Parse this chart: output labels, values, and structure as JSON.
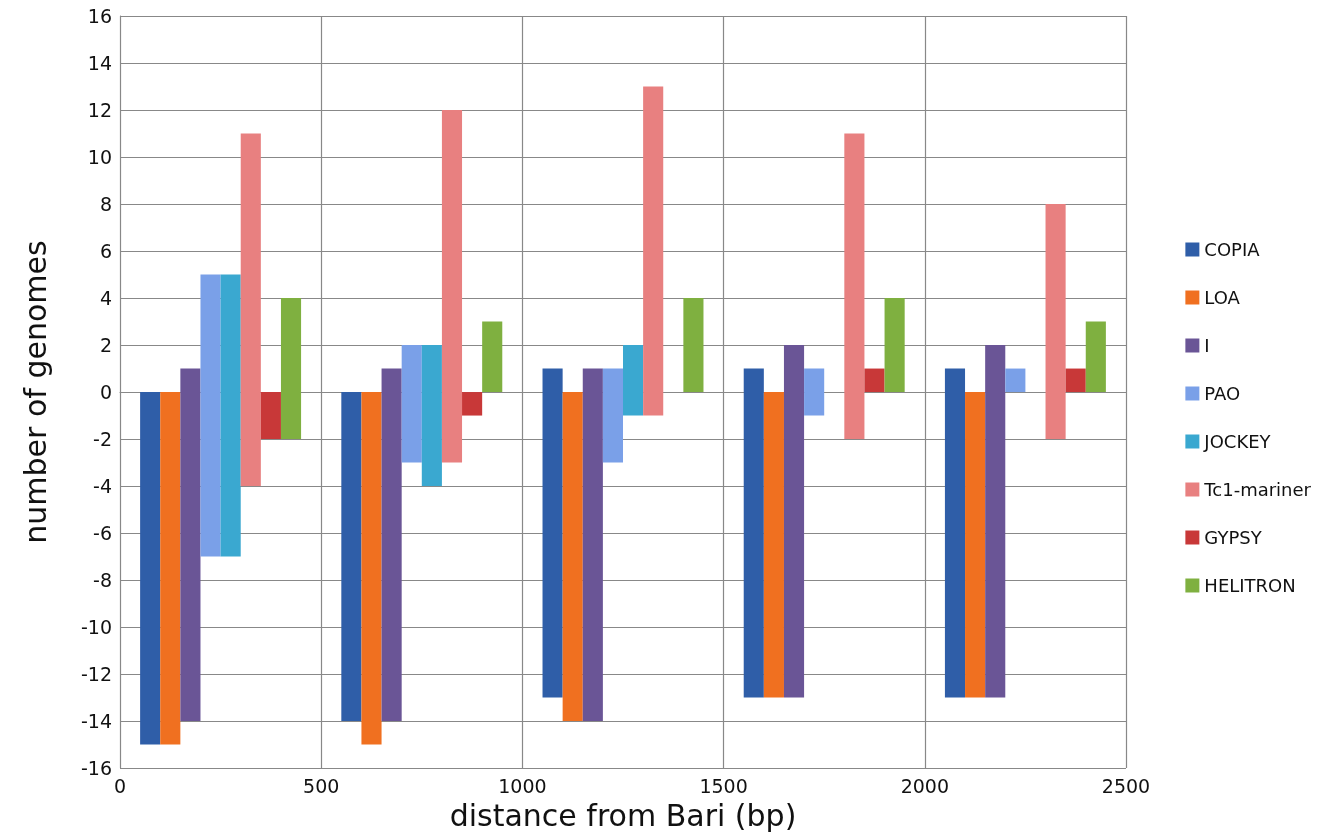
{
  "chart_data": {
    "type": "bar",
    "xlabel": "distance from Bari (bp)",
    "ylabel": "number of genomes",
    "x": [
      250,
      750,
      1250,
      1750,
      2250
    ],
    "xlim": [
      0,
      2500
    ],
    "xticks": [
      0,
      500,
      1000,
      1500,
      2000,
      2500
    ],
    "ylim": [
      -16,
      16
    ],
    "yticks": [
      -16,
      -14,
      -12,
      -10,
      -8,
      -6,
      -4,
      -2,
      0,
      2,
      4,
      6,
      8,
      10,
      12,
      14,
      16
    ],
    "grid": true,
    "legend": "right",
    "series": [
      {
        "name": "COPIA",
        "color": "#2f5ea8",
        "base": [
          -15,
          -14,
          -13,
          -13,
          -13
        ],
        "values": [
          15,
          14,
          14,
          14,
          14
        ]
      },
      {
        "name": "LOA",
        "color": "#f07020",
        "base": [
          -15,
          -15,
          -14,
          -13,
          -13
        ],
        "values": [
          15,
          15,
          14,
          13,
          13
        ]
      },
      {
        "name": "I",
        "color": "#6a5596",
        "base": [
          -14,
          -14,
          -14,
          -13,
          -13
        ],
        "values": [
          15,
          15,
          15,
          15,
          15
        ]
      },
      {
        "name": "PAO",
        "color": "#7aa0e8",
        "base": [
          -7,
          -3,
          -3,
          -1,
          0
        ],
        "values": [
          12,
          5,
          4,
          2,
          1
        ]
      },
      {
        "name": "JOCKEY",
        "color": "#3aa8d0",
        "base": [
          -7,
          -4,
          -1,
          null,
          null
        ],
        "values": [
          12,
          6,
          3,
          null,
          null
        ]
      },
      {
        "name": "Tc1-mariner",
        "color": "#e88080",
        "base": [
          -4,
          -3,
          -1,
          -2,
          -2
        ],
        "values": [
          15,
          15,
          14,
          13,
          10
        ]
      },
      {
        "name": "GYPSY",
        "color": "#c83838",
        "base": [
          -2,
          -1,
          null,
          0,
          0
        ],
        "values": [
          2,
          1,
          null,
          1,
          1
        ]
      },
      {
        "name": "HELITRON",
        "color": "#7fb040",
        "base": [
          -2,
          0,
          0,
          0,
          0
        ],
        "values": [
          6,
          3,
          4,
          4,
          3
        ]
      }
    ]
  }
}
